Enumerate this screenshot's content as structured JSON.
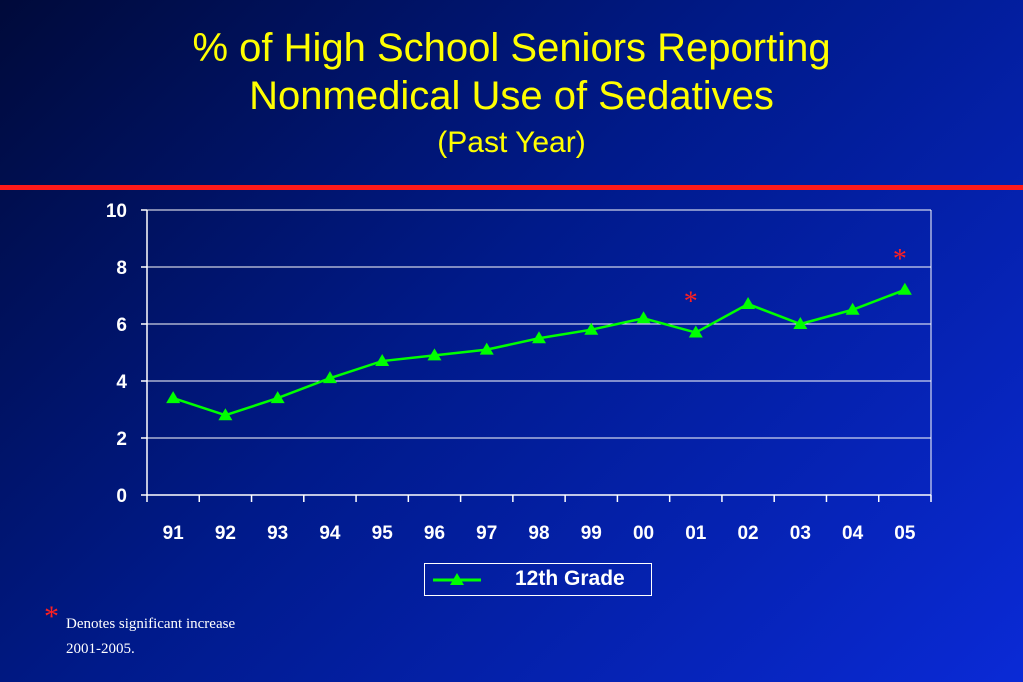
{
  "title": {
    "line1": "% of High School Seniors Reporting",
    "line2": "Nonmedical Use of Sedatives",
    "subtitle": "(Past Year)"
  },
  "colors": {
    "title": "#ffff00",
    "rule": "#ff1a1a",
    "series": "#00ff00",
    "asterisk": "#ff2020",
    "grid": "#ffffff"
  },
  "chart_data": {
    "type": "line",
    "title": "% of High School Seniors Reporting Nonmedical Use of Sedatives (Past Year)",
    "xlabel": "",
    "ylabel": "",
    "categories": [
      "91",
      "92",
      "93",
      "94",
      "95",
      "96",
      "97",
      "98",
      "99",
      "00",
      "01",
      "02",
      "03",
      "04",
      "05"
    ],
    "series": [
      {
        "name": "12th Grade",
        "values": [
          3.4,
          2.8,
          3.4,
          4.1,
          4.7,
          4.9,
          5.1,
          5.5,
          5.8,
          6.2,
          5.7,
          6.7,
          6.0,
          6.5,
          7.2
        ],
        "marker": "triangle"
      }
    ],
    "ylim": [
      0,
      10
    ],
    "yticks": [
      0,
      2,
      4,
      6,
      8,
      10
    ],
    "grid": true,
    "legend": "bottom",
    "annotations": [
      {
        "text": "*",
        "category": "01"
      },
      {
        "text": "*",
        "category": "05"
      }
    ]
  },
  "footnote": {
    "symbol": "*",
    "line1": "Denotes significant increase",
    "line2": "2001-2005."
  }
}
